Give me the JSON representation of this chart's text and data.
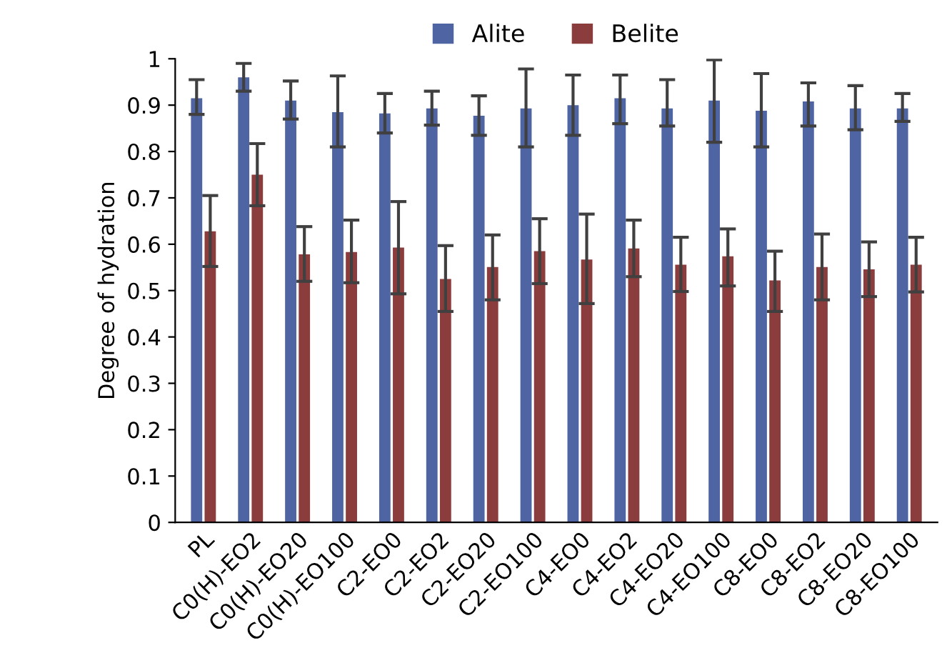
{
  "chart_data": {
    "type": "bar",
    "ylabel": "Degree of hydration",
    "categories": [
      "PL",
      "C0(H)-EO2",
      "C0(H)-EO20",
      "C0(H)-EO100",
      "C2-EO0",
      "C2-EO2",
      "C2-EO20",
      "C2-EO100",
      "C4-EO0",
      "C4-EO2",
      "C4-EO20",
      "C4-EO100",
      "C8-EO0",
      "C8-EO2",
      "C8-EO20",
      "C8-EO100"
    ],
    "series": [
      {
        "name": "Alite",
        "color": "#4f64a2",
        "values": [
          0.915,
          0.96,
          0.91,
          0.885,
          0.882,
          0.893,
          0.877,
          0.893,
          0.9,
          0.915,
          0.893,
          0.91,
          0.888,
          0.908,
          0.893,
          0.893
        ],
        "errors": [
          [
            0.88,
            0.955
          ],
          [
            0.93,
            0.99
          ],
          [
            0.87,
            0.952
          ],
          [
            0.81,
            0.963
          ],
          [
            0.84,
            0.925
          ],
          [
            0.857,
            0.93
          ],
          [
            0.835,
            0.92
          ],
          [
            0.81,
            0.978
          ],
          [
            0.835,
            0.965
          ],
          [
            0.86,
            0.965
          ],
          [
            0.855,
            0.955
          ],
          [
            0.82,
            0.998
          ],
          [
            0.81,
            0.968
          ],
          [
            0.855,
            0.948
          ],
          [
            0.847,
            0.942
          ],
          [
            0.865,
            0.925
          ]
        ]
      },
      {
        "name": "Belite",
        "color": "#8b3d3e",
        "values": [
          0.628,
          0.75,
          0.578,
          0.583,
          0.593,
          0.525,
          0.551,
          0.585,
          0.567,
          0.591,
          0.556,
          0.574,
          0.522,
          0.551,
          0.546,
          0.556
        ],
        "errors": [
          [
            0.552,
            0.705
          ],
          [
            0.683,
            0.817
          ],
          [
            0.52,
            0.638
          ],
          [
            0.517,
            0.652
          ],
          [
            0.493,
            0.692
          ],
          [
            0.455,
            0.597
          ],
          [
            0.48,
            0.62
          ],
          [
            0.515,
            0.655
          ],
          [
            0.472,
            0.665
          ],
          [
            0.53,
            0.652
          ],
          [
            0.498,
            0.615
          ],
          [
            0.51,
            0.633
          ],
          [
            0.455,
            0.585
          ],
          [
            0.48,
            0.622
          ],
          [
            0.487,
            0.605
          ],
          [
            0.497,
            0.615
          ]
        ]
      }
    ],
    "ylim": [
      0,
      1
    ],
    "yticks": [
      0,
      0.1,
      0.2,
      0.3,
      0.4,
      0.5,
      0.6,
      0.7,
      0.8,
      0.9,
      1
    ],
    "grid": false,
    "legend": "top"
  }
}
